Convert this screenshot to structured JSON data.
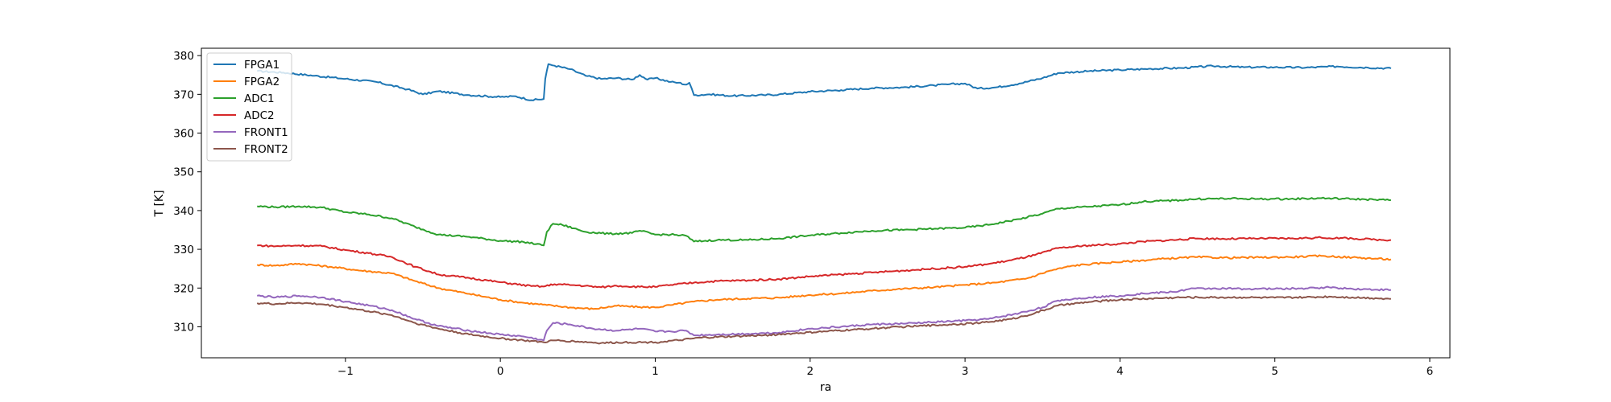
{
  "chart_data": {
    "type": "line",
    "title": "",
    "xlabel": "ra",
    "ylabel": "T [K]",
    "xlim": [
      -1.93,
      6.13
    ],
    "ylim": [
      302.0,
      381.9
    ],
    "xticks": [
      -1,
      0,
      1,
      2,
      3,
      4,
      5,
      6
    ],
    "yticks": [
      310,
      320,
      330,
      340,
      350,
      360,
      370,
      380
    ],
    "grid": false,
    "legend_position": "upper left",
    "series": [
      {
        "name": "FPGA1",
        "color": "#1f77b4",
        "points": [
          [
            -1.57,
            376.0
          ],
          [
            -1.4,
            375.6
          ],
          [
            -1.2,
            374.8
          ],
          [
            -1.0,
            374.0
          ],
          [
            -0.8,
            373.2
          ],
          [
            -0.6,
            371.3
          ],
          [
            -0.5,
            370.0
          ],
          [
            -0.4,
            370.8
          ],
          [
            -0.2,
            369.8
          ],
          [
            0.0,
            369.3
          ],
          [
            0.1,
            369.5
          ],
          [
            0.2,
            368.5
          ],
          [
            0.28,
            368.8
          ],
          [
            0.29,
            374.0
          ],
          [
            0.31,
            377.8
          ],
          [
            0.35,
            377.4
          ],
          [
            0.45,
            376.5
          ],
          [
            0.55,
            374.8
          ],
          [
            0.65,
            374.0
          ],
          [
            0.75,
            374.2
          ],
          [
            0.85,
            373.8
          ],
          [
            0.9,
            375.0
          ],
          [
            0.95,
            373.8
          ],
          [
            1.0,
            374.2
          ],
          [
            1.1,
            373.2
          ],
          [
            1.15,
            373.0
          ],
          [
            1.2,
            372.5
          ],
          [
            1.22,
            373.0
          ],
          [
            1.25,
            369.8
          ],
          [
            1.35,
            370.0
          ],
          [
            1.5,
            369.6
          ],
          [
            1.7,
            369.8
          ],
          [
            1.8,
            370.0
          ],
          [
            2.0,
            370.7
          ],
          [
            2.2,
            371.1
          ],
          [
            2.4,
            371.6
          ],
          [
            2.6,
            371.8
          ],
          [
            2.8,
            372.3
          ],
          [
            2.9,
            372.6
          ],
          [
            3.0,
            372.8
          ],
          [
            3.08,
            371.5
          ],
          [
            3.2,
            371.8
          ],
          [
            3.35,
            372.8
          ],
          [
            3.5,
            374.2
          ],
          [
            3.6,
            375.5
          ],
          [
            3.8,
            376.0
          ],
          [
            4.0,
            376.3
          ],
          [
            4.2,
            376.6
          ],
          [
            4.4,
            376.8
          ],
          [
            4.6,
            377.3
          ],
          [
            4.8,
            377.0
          ],
          [
            5.0,
            377.0
          ],
          [
            5.2,
            376.9
          ],
          [
            5.4,
            377.2
          ],
          [
            5.6,
            376.9
          ],
          [
            5.75,
            376.7
          ]
        ]
      },
      {
        "name": "FPGA2",
        "color": "#ff7f0e",
        "points": [
          [
            -1.57,
            326.0
          ],
          [
            -1.45,
            325.8
          ],
          [
            -1.3,
            326.3
          ],
          [
            -1.1,
            325.5
          ],
          [
            -0.9,
            324.5
          ],
          [
            -0.7,
            323.8
          ],
          [
            -0.55,
            321.8
          ],
          [
            -0.4,
            320.0
          ],
          [
            -0.2,
            318.5
          ],
          [
            0.0,
            317.0
          ],
          [
            0.15,
            316.2
          ],
          [
            0.3,
            315.6
          ],
          [
            0.45,
            315.0
          ],
          [
            0.6,
            314.6
          ],
          [
            0.75,
            315.4
          ],
          [
            0.9,
            315.1
          ],
          [
            1.0,
            315.0
          ],
          [
            1.1,
            315.6
          ],
          [
            1.25,
            316.5
          ],
          [
            1.4,
            317.0
          ],
          [
            1.6,
            317.3
          ],
          [
            1.8,
            317.5
          ],
          [
            2.0,
            318.2
          ],
          [
            2.2,
            318.6
          ],
          [
            2.4,
            319.3
          ],
          [
            2.6,
            319.8
          ],
          [
            2.8,
            320.2
          ],
          [
            3.0,
            320.8
          ],
          [
            3.2,
            321.4
          ],
          [
            3.4,
            322.5
          ],
          [
            3.55,
            324.5
          ],
          [
            3.7,
            325.8
          ],
          [
            3.9,
            326.5
          ],
          [
            4.1,
            327.0
          ],
          [
            4.3,
            327.6
          ],
          [
            4.5,
            328.0
          ],
          [
            4.7,
            327.8
          ],
          [
            4.9,
            327.9
          ],
          [
            5.1,
            328.0
          ],
          [
            5.3,
            328.3
          ],
          [
            5.5,
            327.9
          ],
          [
            5.65,
            327.6
          ],
          [
            5.75,
            327.4
          ]
        ]
      },
      {
        "name": "ADC1",
        "color": "#2ca02c",
        "points": [
          [
            -1.57,
            341.1
          ],
          [
            -1.45,
            340.9
          ],
          [
            -1.3,
            341.1
          ],
          [
            -1.15,
            340.8
          ],
          [
            -1.0,
            339.6
          ],
          [
            -0.85,
            339.0
          ],
          [
            -0.7,
            338.0
          ],
          [
            -0.55,
            335.8
          ],
          [
            -0.4,
            333.8
          ],
          [
            -0.2,
            333.2
          ],
          [
            0.0,
            332.2
          ],
          [
            0.15,
            331.9
          ],
          [
            0.28,
            331.0
          ],
          [
            0.3,
            334.5
          ],
          [
            0.34,
            336.6
          ],
          [
            0.4,
            336.3
          ],
          [
            0.55,
            334.5
          ],
          [
            0.7,
            334.0
          ],
          [
            0.85,
            334.2
          ],
          [
            0.9,
            334.8
          ],
          [
            1.0,
            333.8
          ],
          [
            1.1,
            333.8
          ],
          [
            1.2,
            333.5
          ],
          [
            1.25,
            332.0
          ],
          [
            1.4,
            332.4
          ],
          [
            1.6,
            332.4
          ],
          [
            1.8,
            332.8
          ],
          [
            2.0,
            333.6
          ],
          [
            2.2,
            334.2
          ],
          [
            2.4,
            334.8
          ],
          [
            2.6,
            335.0
          ],
          [
            2.8,
            335.3
          ],
          [
            3.0,
            335.6
          ],
          [
            3.15,
            336.3
          ],
          [
            3.35,
            337.8
          ],
          [
            3.5,
            339.2
          ],
          [
            3.6,
            340.5
          ],
          [
            3.8,
            341.0
          ],
          [
            4.0,
            341.5
          ],
          [
            4.15,
            342.3
          ],
          [
            4.35,
            342.6
          ],
          [
            4.5,
            343.0
          ],
          [
            4.7,
            343.1
          ],
          [
            4.9,
            343.0
          ],
          [
            5.1,
            343.0
          ],
          [
            5.3,
            343.2
          ],
          [
            5.5,
            343.0
          ],
          [
            5.65,
            342.8
          ],
          [
            5.75,
            342.7
          ]
        ]
      },
      {
        "name": "ADC2",
        "color": "#d62728",
        "points": [
          [
            -1.57,
            331.0
          ],
          [
            -1.45,
            330.8
          ],
          [
            -1.3,
            331.0
          ],
          [
            -1.15,
            330.8
          ],
          [
            -1.0,
            329.8
          ],
          [
            -0.85,
            329.0
          ],
          [
            -0.7,
            328.0
          ],
          [
            -0.55,
            325.5
          ],
          [
            -0.4,
            323.5
          ],
          [
            -0.2,
            322.6
          ],
          [
            0.0,
            321.5
          ],
          [
            0.2,
            320.5
          ],
          [
            0.28,
            320.4
          ],
          [
            0.35,
            321.0
          ],
          [
            0.5,
            320.7
          ],
          [
            0.65,
            320.2
          ],
          [
            0.75,
            320.6
          ],
          [
            0.9,
            320.3
          ],
          [
            1.0,
            320.3
          ],
          [
            1.1,
            320.8
          ],
          [
            1.25,
            321.4
          ],
          [
            1.4,
            321.8
          ],
          [
            1.6,
            322.0
          ],
          [
            1.8,
            322.3
          ],
          [
            2.0,
            323.0
          ],
          [
            2.2,
            323.5
          ],
          [
            2.4,
            324.0
          ],
          [
            2.6,
            324.5
          ],
          [
            2.8,
            325.0
          ],
          [
            3.0,
            325.5
          ],
          [
            3.15,
            326.2
          ],
          [
            3.3,
            327.2
          ],
          [
            3.45,
            328.5
          ],
          [
            3.6,
            330.3
          ],
          [
            3.8,
            331.0
          ],
          [
            4.0,
            331.4
          ],
          [
            4.15,
            332.0
          ],
          [
            4.3,
            332.3
          ],
          [
            4.5,
            332.8
          ],
          [
            4.7,
            332.7
          ],
          [
            4.9,
            332.8
          ],
          [
            5.1,
            332.8
          ],
          [
            5.3,
            333.0
          ],
          [
            5.5,
            332.8
          ],
          [
            5.65,
            332.5
          ],
          [
            5.75,
            332.4
          ]
        ]
      },
      {
        "name": "FRONT1",
        "color": "#9467bd",
        "points": [
          [
            -1.57,
            318.0
          ],
          [
            -1.45,
            317.6
          ],
          [
            -1.3,
            318.0
          ],
          [
            -1.15,
            317.6
          ],
          [
            -1.0,
            316.5
          ],
          [
            -0.85,
            315.5
          ],
          [
            -0.7,
            314.3
          ],
          [
            -0.55,
            312.0
          ],
          [
            -0.4,
            310.2
          ],
          [
            -0.2,
            309.0
          ],
          [
            0.0,
            308.0
          ],
          [
            0.15,
            307.5
          ],
          [
            0.28,
            306.5
          ],
          [
            0.3,
            309.0
          ],
          [
            0.34,
            311.0
          ],
          [
            0.45,
            310.6
          ],
          [
            0.6,
            309.5
          ],
          [
            0.75,
            309.0
          ],
          [
            0.9,
            309.5
          ],
          [
            1.0,
            308.8
          ],
          [
            1.1,
            308.8
          ],
          [
            1.2,
            309.0
          ],
          [
            1.25,
            307.8
          ],
          [
            1.4,
            308.0
          ],
          [
            1.6,
            308.2
          ],
          [
            1.8,
            308.5
          ],
          [
            2.0,
            309.5
          ],
          [
            2.2,
            310.0
          ],
          [
            2.4,
            310.6
          ],
          [
            2.6,
            310.8
          ],
          [
            2.8,
            311.2
          ],
          [
            3.0,
            311.6
          ],
          [
            3.15,
            312.0
          ],
          [
            3.35,
            313.5
          ],
          [
            3.5,
            315.0
          ],
          [
            3.6,
            316.8
          ],
          [
            3.8,
            317.6
          ],
          [
            4.0,
            318.0
          ],
          [
            4.15,
            318.6
          ],
          [
            4.35,
            319.0
          ],
          [
            4.45,
            319.8
          ],
          [
            4.6,
            319.9
          ],
          [
            4.8,
            319.8
          ],
          [
            5.0,
            319.8
          ],
          [
            5.2,
            319.9
          ],
          [
            5.35,
            320.2
          ],
          [
            5.5,
            319.8
          ],
          [
            5.65,
            319.6
          ],
          [
            5.75,
            319.5
          ]
        ]
      },
      {
        "name": "FRONT2",
        "color": "#8c564b",
        "points": [
          [
            -1.57,
            316.1
          ],
          [
            -1.45,
            315.9
          ],
          [
            -1.3,
            316.2
          ],
          [
            -1.15,
            315.8
          ],
          [
            -1.0,
            315.0
          ],
          [
            -0.85,
            314.0
          ],
          [
            -0.7,
            313.0
          ],
          [
            -0.55,
            311.0
          ],
          [
            -0.4,
            309.5
          ],
          [
            -0.2,
            308.0
          ],
          [
            0.0,
            307.0
          ],
          [
            0.15,
            306.5
          ],
          [
            0.28,
            306.0
          ],
          [
            0.35,
            306.5
          ],
          [
            0.5,
            306.2
          ],
          [
            0.65,
            305.8
          ],
          [
            0.8,
            306.0
          ],
          [
            1.0,
            306.0
          ],
          [
            1.15,
            306.5
          ],
          [
            1.3,
            307.2
          ],
          [
            1.5,
            307.5
          ],
          [
            1.7,
            307.8
          ],
          [
            1.9,
            308.3
          ],
          [
            2.1,
            308.8
          ],
          [
            2.3,
            309.3
          ],
          [
            2.5,
            309.8
          ],
          [
            2.7,
            310.2
          ],
          [
            2.9,
            310.6
          ],
          [
            3.1,
            311.0
          ],
          [
            3.3,
            312.0
          ],
          [
            3.45,
            313.5
          ],
          [
            3.6,
            315.5
          ],
          [
            3.8,
            316.4
          ],
          [
            4.0,
            317.0
          ],
          [
            4.2,
            317.3
          ],
          [
            4.4,
            317.6
          ],
          [
            4.6,
            317.6
          ],
          [
            4.8,
            317.6
          ],
          [
            5.0,
            317.5
          ],
          [
            5.2,
            317.6
          ],
          [
            5.35,
            317.8
          ],
          [
            5.5,
            317.6
          ],
          [
            5.65,
            317.4
          ],
          [
            5.75,
            317.2
          ]
        ]
      }
    ]
  }
}
